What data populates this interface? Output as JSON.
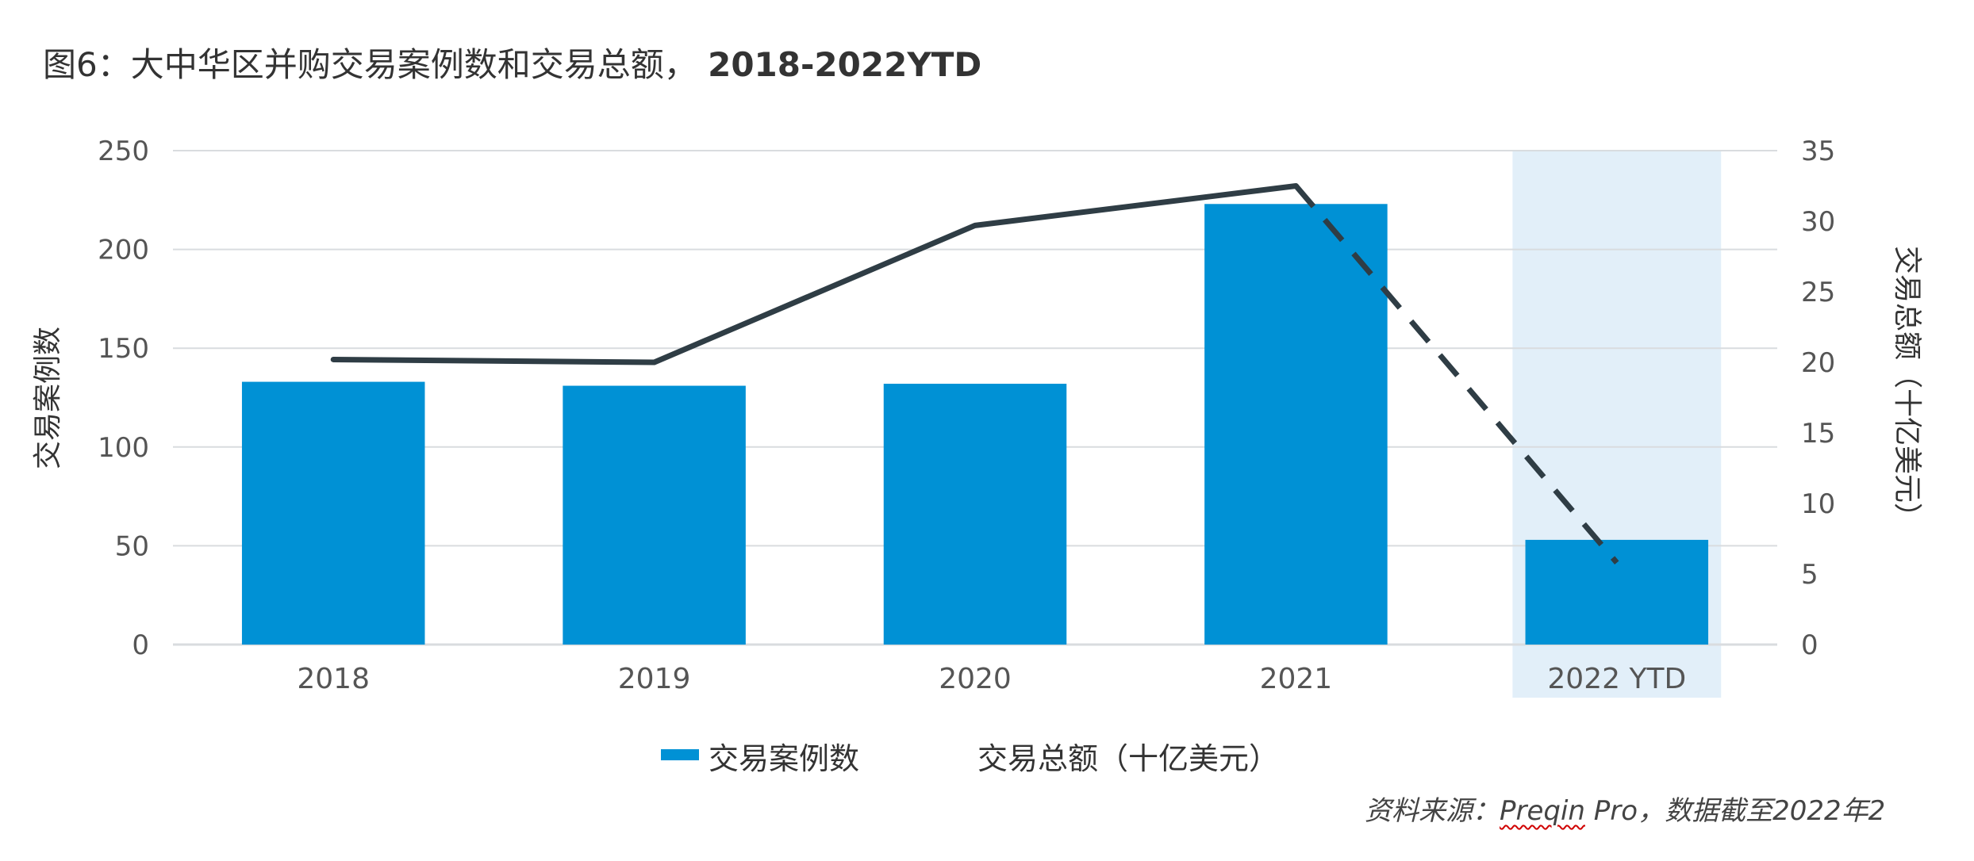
{
  "title": {
    "prefix": "图6：大中华区并购交易案例数和交易总额，",
    "suffix": "2018-2022YTD"
  },
  "legend": {
    "bars": "交易案例数",
    "line": "交易总额（十亿美元）"
  },
  "source": {
    "prefix": "资料来源：",
    "brand": "Preqin",
    "rest": " Pro，数据截至2022年2"
  },
  "colors": {
    "bar": "#0091d5",
    "line": "#2f3d45",
    "highlight": "#e2eff9",
    "grid": "#d9dcdf",
    "text": "#555"
  },
  "chart_data": {
    "type": "bar",
    "categories": [
      "2018",
      "2019",
      "2020",
      "2021",
      "2022 YTD"
    ],
    "series": [
      {
        "name": "交易案例数",
        "type": "bar",
        "axis": "left",
        "values": [
          133,
          131,
          132,
          223,
          53
        ]
      },
      {
        "name": "交易总额（十亿美元）",
        "type": "line",
        "axis": "right",
        "values": [
          20.2,
          20.0,
          29.7,
          32.5,
          5.8
        ],
        "dashed_segment": "2021-2022 YTD"
      }
    ],
    "ylabel": "交易案例数",
    "y2label": "交易总额（十亿美元）",
    "ylim": [
      0,
      250
    ],
    "y2lim": [
      0,
      35
    ],
    "yticks": [
      0,
      50,
      100,
      150,
      200,
      250
    ],
    "y2ticks": [
      0,
      5,
      10,
      15,
      20,
      25,
      30,
      35
    ],
    "highlighted_category": "2022 YTD",
    "grid": true,
    "legend_position": "bottom-center"
  }
}
